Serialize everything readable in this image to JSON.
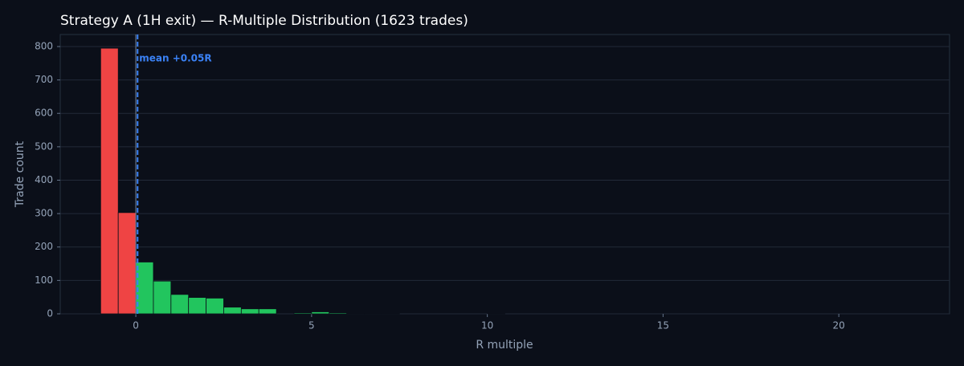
{
  "chart_data": {
    "type": "histogram",
    "title": "Strategy A (1H exit) — R-Multiple Distribution (1623 trades)",
    "x_label": "R multiple",
    "y_label": "Trade count",
    "bins": [
      -1,
      -0.5,
      0,
      0.5,
      1,
      1.5,
      2,
      2.5,
      3,
      3.5,
      4,
      4.5,
      5,
      5.5,
      6,
      6.5,
      7,
      7.5,
      8,
      8.5,
      9,
      9.5,
      10,
      10.5,
      11
    ],
    "values": [
      795,
      303,
      155,
      98,
      58,
      49,
      47,
      20,
      15,
      15,
      0,
      3,
      6,
      3,
      1,
      1,
      1,
      0,
      0,
      0,
      0,
      0,
      1,
      0
    ],
    "negative_color": "#ef4444",
    "positive_color": "#22c55e",
    "xlim": [
      -2.15,
      23.15
    ],
    "xticks": [
      0,
      5,
      10,
      15,
      20
    ],
    "ylim": [
      0,
      836
    ],
    "yticks": [
      0,
      100,
      200,
      300,
      400,
      500,
      600,
      700,
      800
    ],
    "grid": true,
    "zero_line": 0,
    "mean": {
      "value": 0.05,
      "label": "mean +0.05R",
      "color": "#3b82f6"
    }
  }
}
